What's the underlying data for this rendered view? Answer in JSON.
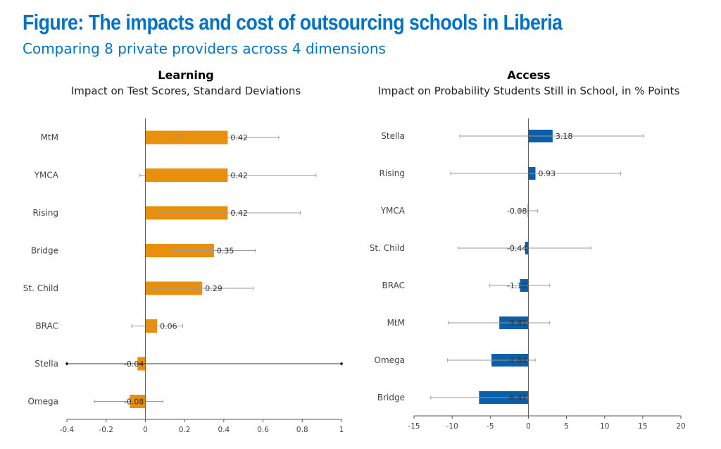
{
  "figure": {
    "title": "Figure: The impacts and cost of outsourcing schools in Liberia",
    "subtitle": "Comparing 8 private providers across 4 dimensions"
  },
  "colors": {
    "title": "#0072c6",
    "learning_bar": "#e8900e",
    "access_bar": "#0b5ea8",
    "error_bar": "#9a9a9a",
    "axis": "#555555"
  },
  "chart_data": [
    {
      "type": "bar",
      "orientation": "horizontal",
      "title": "Learning",
      "subtitle": "Impact on Test Scores, Standard Deviations",
      "categories": [
        "MtM",
        "YMCA",
        "Rising",
        "Bridge",
        "St. Child",
        "BRAC",
        "Stella",
        "Omega"
      ],
      "values": [
        0.42,
        0.42,
        0.42,
        0.35,
        0.29,
        0.06,
        -0.04,
        -0.08
      ],
      "data_labels": [
        "0.42",
        "0.42",
        "0.42",
        "0.35",
        "0.29",
        "0.06",
        "-0.04",
        "-0.08"
      ],
      "error_low": [
        0.17,
        -0.03,
        0.05,
        0.14,
        0.02,
        -0.07,
        -0.4,
        -0.26
      ],
      "error_high": [
        0.68,
        0.87,
        0.79,
        0.56,
        0.55,
        0.19,
        1.0,
        0.09
      ],
      "xlim": [
        -0.4,
        1
      ],
      "xticks": [
        -0.4,
        -0.2,
        0,
        0.2,
        0.4,
        0.6,
        0.8,
        1
      ],
      "xtick_labels": [
        "-0.4",
        "-0.2",
        "0",
        "0.2",
        "0.4",
        "0.6",
        "0.8",
        "1"
      ],
      "grid": false,
      "legend": "none"
    },
    {
      "type": "bar",
      "orientation": "horizontal",
      "title": "Access",
      "subtitle": "Impact on Probability Students Still in School, in % Points",
      "categories": [
        "Stella",
        "Rising",
        "YMCA",
        "St. Child",
        "BRAC",
        "MtM",
        "Omega",
        "Bridge"
      ],
      "values": [
        3.18,
        0.93,
        -0.08,
        -0.44,
        -1.1,
        -3.81,
        -4.84,
        -6.47
      ],
      "data_labels": [
        "3.18",
        "0.93",
        "-0.08",
        "-0.44",
        "-1.10",
        "-3.81",
        "-4.84",
        "-6.47"
      ],
      "error_low": [
        -9,
        -10.2,
        -1.2,
        -9.2,
        -5.1,
        -10.5,
        -10.6,
        -12.8
      ],
      "error_high": [
        15.1,
        12.1,
        1.2,
        8.2,
        2.8,
        2.8,
        0.9,
        -0.2
      ],
      "xlim": [
        -15,
        20
      ],
      "xticks": [
        -15,
        -10,
        -5,
        0,
        5,
        10,
        15,
        20
      ],
      "xtick_labels": [
        "-15",
        "-10",
        "-5",
        "0",
        "5",
        "10",
        "15",
        "20"
      ],
      "grid": false,
      "legend": "none"
    }
  ]
}
